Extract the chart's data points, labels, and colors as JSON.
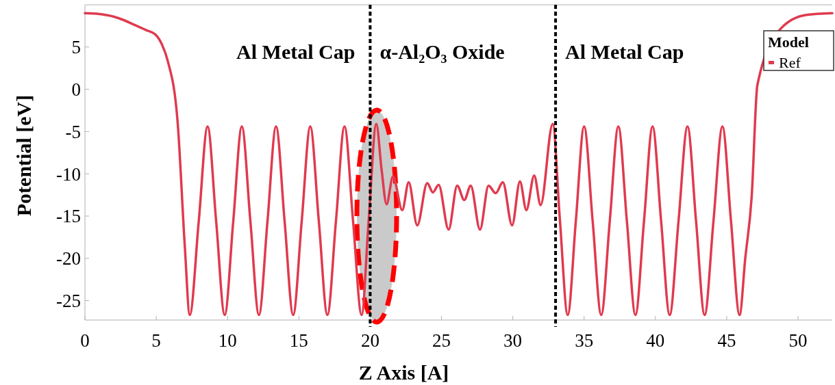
{
  "chart_data": {
    "type": "line",
    "xlabel": "Z Axis [A]",
    "ylabel": "Potential [eV]",
    "xlim": [
      0,
      52.4
    ],
    "ylim": [
      -27.3,
      10
    ],
    "xticks": [
      0,
      5,
      10,
      15,
      20,
      25,
      30,
      35,
      40,
      45,
      50
    ],
    "yticks": [
      -25,
      -20,
      -15,
      -10,
      -5,
      0,
      5
    ],
    "grid": false,
    "legend": "top right",
    "legend_title": "Model",
    "marker": "none",
    "line_style": "solid",
    "series": [
      {
        "name": "Ref",
        "color": "#e03a4e",
        "x": [
          0,
          1,
          2,
          2.7,
          3.5,
          4.3,
          4.93,
          5.4,
          5.8,
          6.5,
          7.0,
          7.35,
          7.98,
          8.6,
          9.2,
          9.8,
          10.4,
          11.0,
          11.6,
          12.2,
          12.8,
          13.4,
          14.0,
          14.6,
          15.2,
          15.8,
          16.4,
          17.0,
          17.6,
          18.2,
          18.8,
          19.4,
          19.9,
          20.43,
          20.8,
          21.15,
          21.6,
          22.25,
          22.7,
          23.3,
          24.0,
          24.4,
          24.8,
          25.5,
          26.1,
          26.6,
          27.05,
          27.7,
          28.3,
          28.8,
          29.3,
          29.95,
          30.5,
          30.95,
          31.5,
          31.95,
          32.8,
          33.3,
          33.85,
          34.42,
          35.0,
          35.6,
          36.2,
          36.8,
          37.4,
          38.0,
          38.6,
          39.2,
          39.8,
          40.4,
          41.0,
          41.62,
          42.25,
          42.85,
          43.45,
          44.07,
          44.7,
          45.3,
          45.9,
          46.3,
          46.75,
          47.15,
          48.8,
          50.6,
          52.4
        ],
        "values": [
          9.0,
          8.9,
          8.6,
          8.2,
          7.6,
          7.0,
          6.5,
          5.3,
          3.4,
          -3.9,
          -18.5,
          -26.7,
          -15.6,
          -4.4,
          -15.6,
          -26.7,
          -15.6,
          -4.4,
          -15.6,
          -26.7,
          -15.6,
          -4.4,
          -15.6,
          -26.7,
          -15.6,
          -4.4,
          -15.6,
          -26.7,
          -15.6,
          -4.4,
          -15.6,
          -26.7,
          -15.4,
          -4.1,
          -9.5,
          -13.6,
          -10.3,
          -14.3,
          -11.0,
          -16.1,
          -11.1,
          -12.2,
          -11.3,
          -16.6,
          -11.4,
          -13.1,
          -11.4,
          -16.6,
          -11.4,
          -12.3,
          -11.0,
          -16.1,
          -10.9,
          -14.3,
          -10.2,
          -13.7,
          -4.1,
          -15.4,
          -26.7,
          -15.6,
          -4.4,
          -15.6,
          -26.7,
          -15.6,
          -4.4,
          -15.6,
          -26.7,
          -15.6,
          -4.4,
          -15.6,
          -26.7,
          -15.6,
          -4.4,
          -15.6,
          -26.7,
          -15.6,
          -4.4,
          -15.6,
          -26.7,
          -20.0,
          -12.7,
          0.5,
          7.2,
          8.8,
          9.0
        ]
      }
    ],
    "ref_lines": [
      {
        "axis": "x",
        "value": 20,
        "color": "#000000",
        "line_style": "dashed"
      },
      {
        "axis": "x",
        "value": 33,
        "color": "#000000",
        "line_style": "dashed"
      }
    ],
    "annotations": [
      "Al Metal Cap",
      "α-Al₂O₃ Oxide",
      "Al Metal Cap"
    ]
  }
}
